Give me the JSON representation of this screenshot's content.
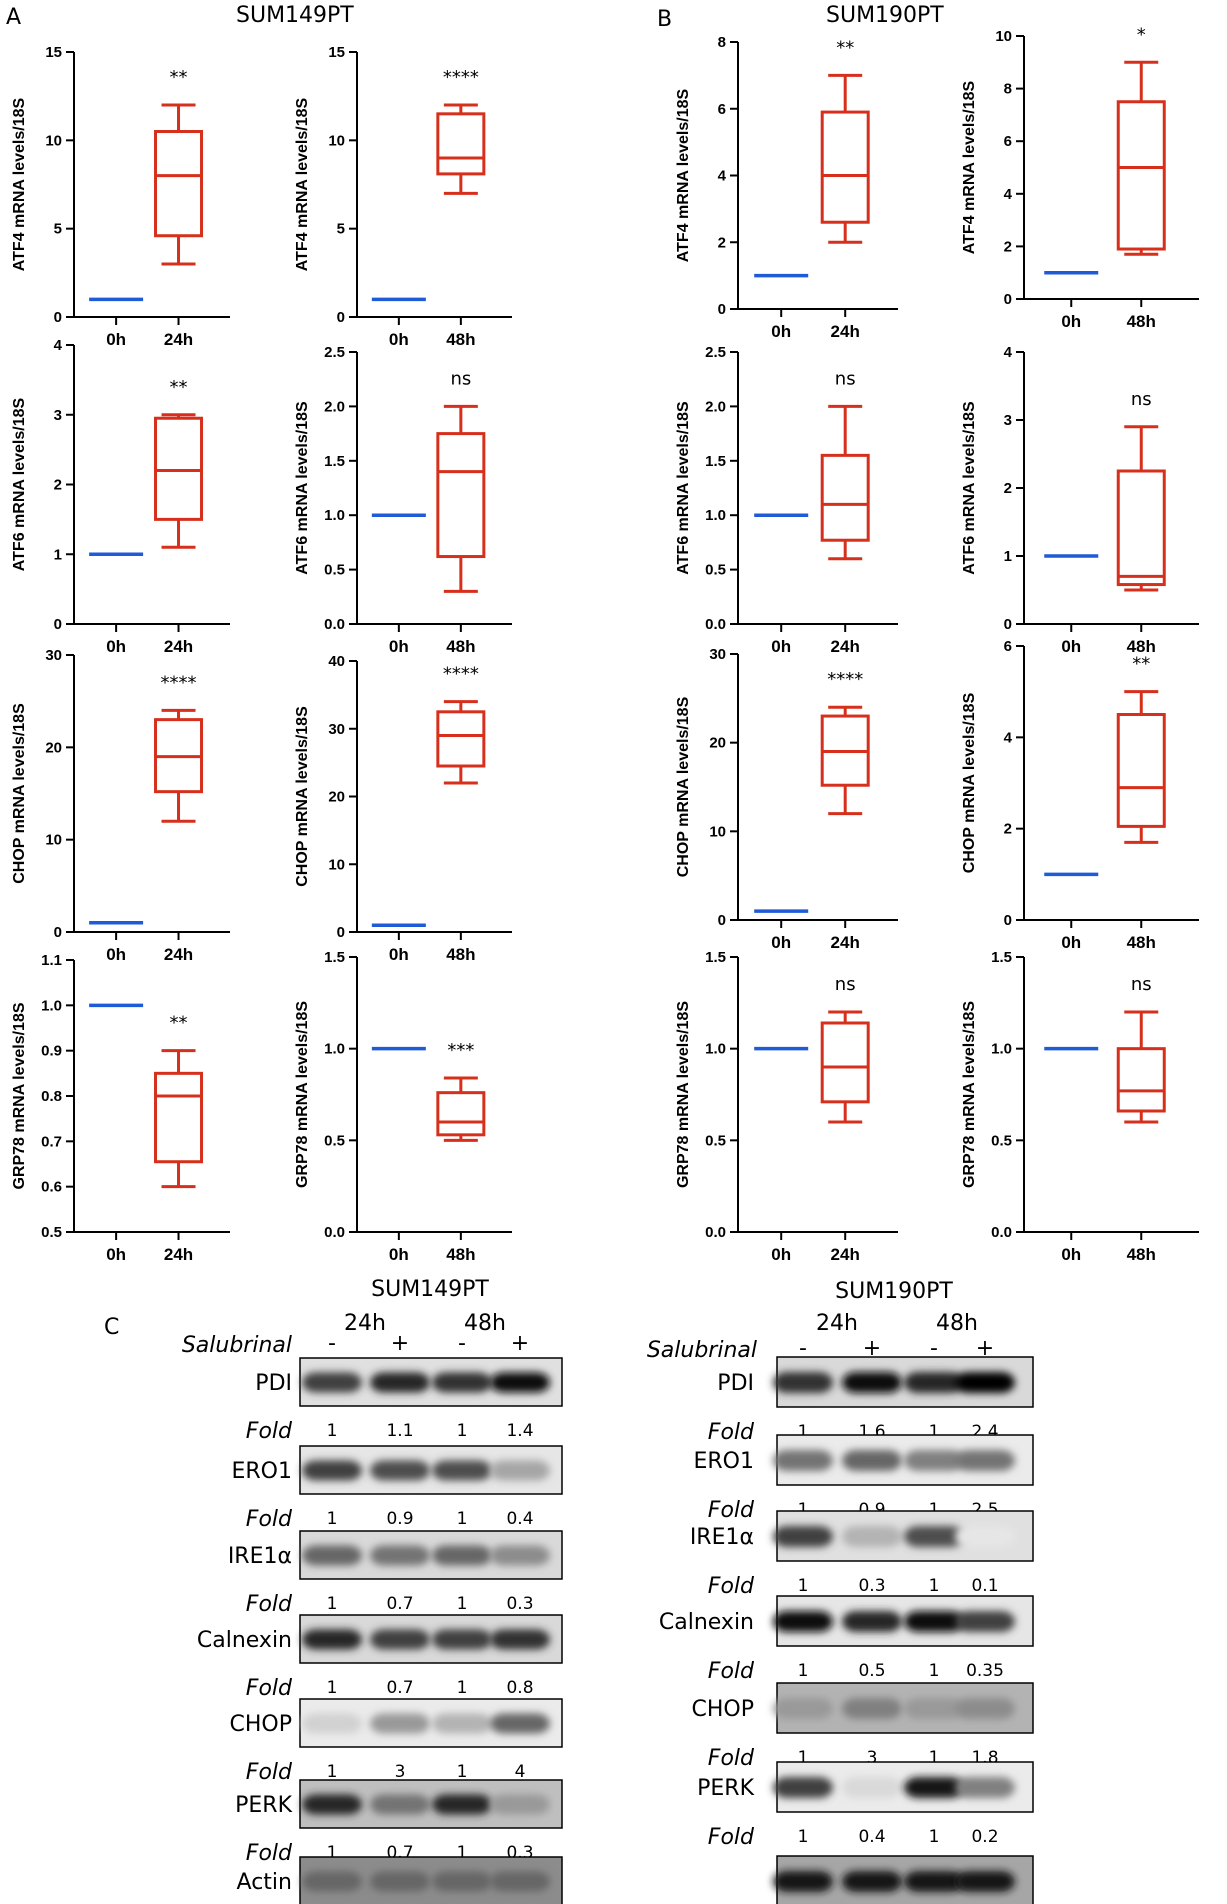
{
  "panels": {
    "a": {
      "letter": "A",
      "title": "SUM149PT"
    },
    "b": {
      "letter": "B",
      "title": "SUM190PT"
    },
    "c": {
      "letter": "C"
    }
  },
  "chart_data": [
    {
      "type": "box",
      "gene": "ATF4",
      "cell_line": "SUM149PT",
      "ylabel": "ATF4 mRNA levels/18S",
      "ylim": [
        0,
        15
      ],
      "yticks": [
        "0",
        "5",
        "10",
        "15"
      ],
      "categories": [
        "0h",
        "24h"
      ],
      "control_value": 1,
      "box": {
        "min": 3,
        "q1": 4.6,
        "median": 8,
        "q3": 10.5,
        "max": 12
      },
      "significance": "**"
    },
    {
      "type": "box",
      "gene": "ATF4",
      "cell_line": "SUM149PT",
      "ylabel": "ATF4 mRNA levels/18S",
      "ylim": [
        0,
        15
      ],
      "yticks": [
        "0",
        "5",
        "10",
        "15"
      ],
      "categories": [
        "0h",
        "48h"
      ],
      "control_value": 1,
      "box": {
        "min": 7,
        "q1": 8.1,
        "median": 9,
        "q3": 11.5,
        "max": 12
      },
      "significance": "****"
    },
    {
      "type": "box",
      "gene": "ATF4",
      "cell_line": "SUM190PT",
      "ylabel": "ATF4 mRNA levels/18S",
      "ylim": [
        0,
        8
      ],
      "yticks": [
        "0",
        "2",
        "4",
        "6",
        "8"
      ],
      "categories": [
        "0h",
        "24h"
      ],
      "control_value": 1,
      "box": {
        "min": 2,
        "q1": 2.6,
        "median": 4,
        "q3": 5.9,
        "max": 7
      },
      "significance": "**"
    },
    {
      "type": "box",
      "gene": "ATF4",
      "cell_line": "SUM190PT",
      "ylabel": "ATF4 mRNA levels/18S",
      "ylim": [
        0,
        10
      ],
      "yticks": [
        "0",
        "2",
        "4",
        "6",
        "8",
        "10"
      ],
      "categories": [
        "0h",
        "48h"
      ],
      "control_value": 1,
      "box": {
        "min": 1.7,
        "q1": 1.9,
        "median": 5,
        "q3": 7.5,
        "max": 9
      },
      "significance": "*"
    },
    {
      "type": "box",
      "gene": "ATF6",
      "cell_line": "SUM149PT",
      "ylabel": "ATF6 mRNA levels/18S",
      "ylim": [
        0,
        4
      ],
      "yticks": [
        "0",
        "1",
        "2",
        "3",
        "4"
      ],
      "categories": [
        "0h",
        "24h"
      ],
      "control_value": 1,
      "box": {
        "min": 1.1,
        "q1": 1.5,
        "median": 2.2,
        "q3": 2.95,
        "max": 3
      },
      "significance": "**"
    },
    {
      "type": "box",
      "gene": "ATF6",
      "cell_line": "SUM149PT",
      "ylabel": "ATF6 mRNA levels/18S",
      "ylim": [
        0,
        2.5
      ],
      "yticks": [
        "0.0",
        "0.5",
        "1.0",
        "1.5",
        "2.0",
        "2.5"
      ],
      "categories": [
        "0h",
        "48h"
      ],
      "control_value": 1,
      "box": {
        "min": 0.3,
        "q1": 0.62,
        "median": 1.4,
        "q3": 1.75,
        "max": 2
      },
      "significance": "ns"
    },
    {
      "type": "box",
      "gene": "ATF6",
      "cell_line": "SUM190PT",
      "ylabel": "ATF6 mRNA levels/18S",
      "ylim": [
        0,
        2.5
      ],
      "yticks": [
        "0.0",
        "0.5",
        "1.0",
        "1.5",
        "2.0",
        "2.5"
      ],
      "categories": [
        "0h",
        "24h"
      ],
      "control_value": 1,
      "box": {
        "min": 0.6,
        "q1": 0.77,
        "median": 1.1,
        "q3": 1.55,
        "max": 2
      },
      "significance": "ns"
    },
    {
      "type": "box",
      "gene": "ATF6",
      "cell_line": "SUM190PT",
      "ylabel": "ATF6 mRNA levels/18S",
      "ylim": [
        0,
        4
      ],
      "yticks": [
        "0",
        "1",
        "2",
        "3",
        "4"
      ],
      "categories": [
        "0h",
        "48h"
      ],
      "control_value": 1,
      "box": {
        "min": 0.5,
        "q1": 0.58,
        "median": 0.7,
        "q3": 2.25,
        "max": 2.9
      },
      "significance": "ns"
    },
    {
      "type": "box",
      "gene": "CHOP",
      "cell_line": "SUM149PT",
      "ylabel": "CHOP mRNA levels/18S",
      "ylim": [
        0,
        30
      ],
      "yticks": [
        "0",
        "10",
        "20",
        "30"
      ],
      "categories": [
        "0h",
        "24h"
      ],
      "control_value": 1,
      "box": {
        "min": 12,
        "q1": 15.2,
        "median": 19,
        "q3": 23,
        "max": 24
      },
      "significance": "****"
    },
    {
      "type": "box",
      "gene": "CHOP",
      "cell_line": "SUM149PT",
      "ylabel": "CHOP mRNA levels/18S",
      "ylim": [
        0,
        40
      ],
      "yticks": [
        "0",
        "10",
        "20",
        "30",
        "40"
      ],
      "categories": [
        "0h",
        "48h"
      ],
      "control_value": 1,
      "box": {
        "min": 22,
        "q1": 24.5,
        "median": 29,
        "q3": 32.5,
        "max": 34
      },
      "significance": "****"
    },
    {
      "type": "box",
      "gene": "CHOP",
      "cell_line": "SUM190PT",
      "ylabel": "CHOP mRNA levels/18S",
      "ylim": [
        0,
        30
      ],
      "yticks": [
        "0",
        "10",
        "20",
        "30"
      ],
      "categories": [
        "0h",
        "24h"
      ],
      "control_value": 1,
      "box": {
        "min": 12,
        "q1": 15.2,
        "median": 19,
        "q3": 23,
        "max": 24
      },
      "significance": "****"
    },
    {
      "type": "box",
      "gene": "CHOP",
      "cell_line": "SUM190PT",
      "ylabel": "CHOP mRNA levels/18S",
      "ylim": [
        0,
        6
      ],
      "yticks": [
        "0",
        "2",
        "4",
        "6"
      ],
      "categories": [
        "0h",
        "48h"
      ],
      "control_value": 1,
      "box": {
        "min": 1.7,
        "q1": 2.05,
        "median": 2.9,
        "q3": 4.5,
        "max": 5
      },
      "significance": "**"
    },
    {
      "type": "box",
      "gene": "GRP78",
      "cell_line": "SUM149PT",
      "ylabel": "GRP78 mRNA levels/18S",
      "ylim": [
        0.5,
        1.1
      ],
      "yticks": [
        "0.5",
        "0.6",
        "0.7",
        "0.8",
        "0.9",
        "1.0",
        "1.1"
      ],
      "categories": [
        "0h",
        "24h"
      ],
      "control_value": 1,
      "box": {
        "min": 0.6,
        "q1": 0.655,
        "median": 0.8,
        "q3": 0.85,
        "max": 0.9
      },
      "significance": "**"
    },
    {
      "type": "box",
      "gene": "GRP78",
      "cell_line": "SUM149PT",
      "ylabel": "GRP78 mRNA levels/18S",
      "ylim": [
        0,
        1.5
      ],
      "yticks": [
        "0.0",
        "0.5",
        "1.0",
        "1.5"
      ],
      "categories": [
        "0h",
        "48h"
      ],
      "control_value": 1,
      "box": {
        "min": 0.5,
        "q1": 0.53,
        "median": 0.6,
        "q3": 0.76,
        "max": 0.84
      },
      "significance": "***"
    },
    {
      "type": "box",
      "gene": "GRP78",
      "cell_line": "SUM190PT",
      "ylabel": "GRP78 mRNA levels/18S",
      "ylim": [
        0,
        1.5
      ],
      "yticks": [
        "0.0",
        "0.5",
        "1.0",
        "1.5"
      ],
      "categories": [
        "0h",
        "24h"
      ],
      "control_value": 1,
      "box": {
        "min": 0.6,
        "q1": 0.71,
        "median": 0.9,
        "q3": 1.14,
        "max": 1.2
      },
      "significance": "ns"
    },
    {
      "type": "box",
      "gene": "GRP78",
      "cell_line": "SUM190PT",
      "ylabel": "GRP78 mRNA levels/18S",
      "ylim": [
        0,
        1.5
      ],
      "yticks": [
        "0.0",
        "0.5",
        "1.0",
        "1.5"
      ],
      "categories": [
        "0h",
        "48h"
      ],
      "control_value": 1,
      "box": {
        "min": 0.6,
        "q1": 0.66,
        "median": 0.77,
        "q3": 1.0,
        "max": 1.2
      },
      "significance": "ns"
    }
  ],
  "western": [
    {
      "title": "SUM149PT",
      "timepoints": [
        "24h",
        "48h"
      ],
      "treatment_label": "Salubrinal",
      "treatment_signs": [
        "-",
        "+",
        "-",
        "+"
      ],
      "fold_label": "Fold",
      "blots": [
        {
          "protein": "PDI",
          "fold": [
            "1",
            "1.1",
            "1",
            "1.4"
          ],
          "intensity": [
            0.75,
            0.85,
            0.8,
            0.95
          ],
          "bg": 0.12
        },
        {
          "protein": "ERO1",
          "fold": [
            "1",
            "0.9",
            "1",
            "0.4"
          ],
          "intensity": [
            0.75,
            0.7,
            0.7,
            0.35
          ],
          "bg": 0.1
        },
        {
          "protein": "IRE1α",
          "fold": [
            "1",
            "0.7",
            "1",
            "0.3"
          ],
          "intensity": [
            0.6,
            0.55,
            0.6,
            0.45
          ],
          "bg": 0.15
        },
        {
          "protein": "Calnexin",
          "fold": [
            "1",
            "0.7",
            "1",
            "0.8"
          ],
          "intensity": [
            0.85,
            0.75,
            0.75,
            0.8
          ],
          "bg": 0.15
        },
        {
          "protein": "CHOP",
          "fold": [
            "1",
            "3",
            "1",
            "4"
          ],
          "intensity": [
            0.18,
            0.4,
            0.3,
            0.6
          ],
          "bg": 0.08
        },
        {
          "protein": "PERK",
          "fold": [
            "1",
            "0.7",
            "1",
            "0.3"
          ],
          "intensity": [
            0.85,
            0.55,
            0.85,
            0.4
          ],
          "bg": 0.25
        },
        {
          "protein": "Actin",
          "fold": null,
          "intensity": [
            0.6,
            0.6,
            0.6,
            0.6
          ],
          "bg": 0.45
        }
      ]
    },
    {
      "title": "SUM190PT",
      "timepoints": [
        "24h",
        "48h"
      ],
      "treatment_label": "Salubrinal",
      "treatment_signs": [
        "-",
        "+",
        "-",
        "+"
      ],
      "fold_label": "Fold",
      "blots": [
        {
          "protein": "PDI",
          "fold": [
            "1",
            "1.6",
            "1",
            "2.4"
          ],
          "intensity": [
            0.8,
            0.95,
            0.85,
            1.0
          ],
          "bg": 0.15
        },
        {
          "protein": "ERO1",
          "fold": [
            "1",
            "0.9",
            "1",
            "2.5"
          ],
          "intensity": [
            0.55,
            0.6,
            0.5,
            0.55
          ],
          "bg": 0.08
        },
        {
          "protein": "IRE1α",
          "fold": [
            "1",
            "0.3",
            "1",
            "0.1"
          ],
          "intensity": [
            0.75,
            0.3,
            0.7,
            0.1
          ],
          "bg": 0.12
        },
        {
          "protein": "Calnexin",
          "fold": [
            "1",
            "0.5",
            "1",
            "0.35"
          ],
          "intensity": [
            0.95,
            0.85,
            0.95,
            0.75
          ],
          "bg": 0.1
        },
        {
          "protein": "CHOP",
          "fold": [
            "1",
            "3",
            "1",
            "1.8"
          ],
          "intensity": [
            0.4,
            0.5,
            0.4,
            0.45
          ],
          "bg": 0.3
        },
        {
          "protein": "PERK",
          "fold": [
            "1",
            "0.4",
            "1",
            "0.2"
          ],
          "intensity": [
            0.75,
            0.15,
            0.9,
            0.5
          ],
          "bg": 0.08
        },
        {
          "protein": "",
          "fold": null,
          "intensity": [
            0.9,
            0.9,
            0.9,
            0.9
          ],
          "bg": 0.35
        }
      ]
    }
  ],
  "colors": {
    "control": "#1f5bd6",
    "treated": "#d6301c",
    "axis": "#000000"
  }
}
